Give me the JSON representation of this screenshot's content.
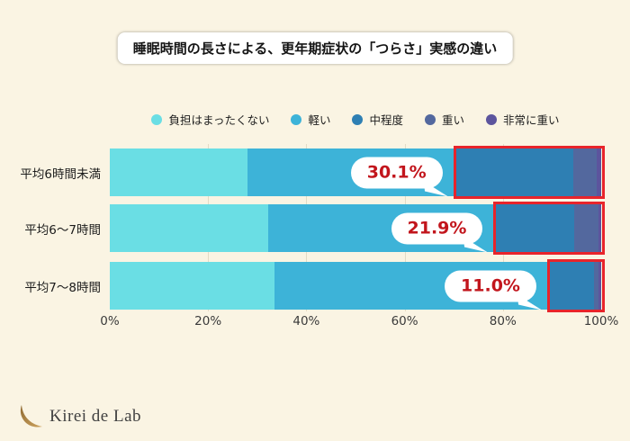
{
  "title": "睡眠時間の長さによる、更年期症状の「つらさ」実感の違い",
  "chart_data": {
    "type": "bar",
    "orientation": "horizontal",
    "stacked": true,
    "title": "睡眠時間の長さによる、更年期症状の「つらさ」実感の違い",
    "categories": [
      "平均6時間未満",
      "平均6〜7時間",
      "平均7〜8時間"
    ],
    "series": [
      {
        "name": "負担はまったくない",
        "color": "#6ADEE4",
        "values": [
          28.0,
          32.2,
          33.5
        ]
      },
      {
        "name": "軽い",
        "color": "#3DB3D8",
        "values": [
          41.9,
          45.9,
          55.5
        ]
      },
      {
        "name": "中程度",
        "color": "#2E7FB3",
        "values": [
          24.5,
          16.5,
          9.5
        ]
      },
      {
        "name": "重い",
        "color": "#53689E",
        "values": [
          4.6,
          4.9,
          1.0
        ]
      },
      {
        "name": "非常に重い",
        "color": "#5C549D",
        "values": [
          1.0,
          0.5,
          0.5
        ]
      }
    ],
    "highlight": {
      "description": "red outline around 中程度+重い+非常に重い portion of each bar",
      "series_from_index": 2,
      "labels": [
        "30.1%",
        "21.9%",
        "11.0%"
      ],
      "box_color": "#E8242B",
      "label_color": "#C2151C"
    },
    "x_ticks": [
      "0%",
      "20%",
      "40%",
      "60%",
      "80%",
      "100%"
    ],
    "xlim": [
      0,
      100
    ],
    "grid": true,
    "legend_position": "top"
  },
  "footer": {
    "brand": "Kirei de Lab"
  },
  "colors": {
    "background": "#FAF4E3",
    "highlight_box": "#E8242B",
    "callout_text": "#C2151C",
    "gridline": "#E2DBC6",
    "logo_gold": "#B08344"
  }
}
